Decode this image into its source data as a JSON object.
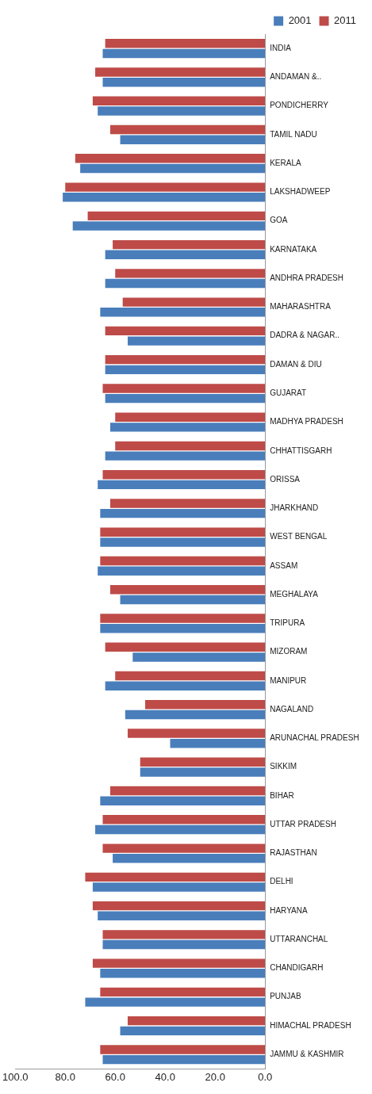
{
  "chart_data": {
    "type": "bar",
    "orientation": "horizontal",
    "categories": [
      "INDIA",
      "ANDAMAN &..",
      "PONDICHERRY",
      "TAMIL NADU",
      "KERALA",
      "LAKSHADWEEP",
      "GOA",
      "KARNATAKA",
      "ANDHRA PRADESH",
      "MAHARASHTRA",
      "DADRA & NAGAR..",
      "DAMAN & DIU",
      "GUJARAT",
      "MADHYA PRADESH",
      "CHHATTISGARH",
      "ORISSA",
      "JHARKHAND",
      "WEST BENGAL",
      "ASSAM",
      "MEGHALAYA",
      "TRIPURA",
      "MIZORAM",
      "MANIPUR",
      "NAGALAND",
      "ARUNACHAL PRADESH",
      "SIKKIM",
      "BIHAR",
      "UTTAR PRADESH",
      "RAJASTHAN",
      "DELHI",
      "HARYANA",
      "UTTARANCHAL",
      "CHANDIGARH",
      "PUNJAB",
      "HIMACHAL PRADESH",
      "JAMMU & KASHMIR"
    ],
    "series": [
      {
        "name": "2001",
        "color": "#4a7ebb",
        "values": [
          65,
          65,
          67,
          58,
          74,
          81,
          77,
          64,
          64,
          66,
          55,
          64,
          64,
          62,
          64,
          67,
          66,
          66,
          67,
          58,
          66,
          53,
          64,
          56,
          38,
          50,
          66,
          68,
          61,
          69,
          67,
          65,
          66,
          72,
          58,
          65
        ]
      },
      {
        "name": "2011",
        "color": "#be4b48",
        "values": [
          64,
          68,
          69,
          62,
          76,
          80,
          71,
          61,
          60,
          57,
          64,
          64,
          65,
          60,
          60,
          65,
          62,
          66,
          66,
          62,
          66,
          64,
          60,
          48,
          55,
          50,
          62,
          65,
          65,
          72,
          69,
          65,
          69,
          66,
          55,
          66
        ]
      }
    ],
    "xlim": [
      100,
      0
    ],
    "xticks": [
      {
        "value": 100,
        "label": "100.0"
      },
      {
        "value": 80,
        "label": "80.0"
      },
      {
        "value": 60,
        "label": "60.0"
      },
      {
        "value": 40,
        "label": "40.0"
      },
      {
        "value": 20,
        "label": "20.0"
      },
      {
        "value": 0,
        "label": "0.0"
      }
    ],
    "grid": false,
    "legend": "top right"
  }
}
